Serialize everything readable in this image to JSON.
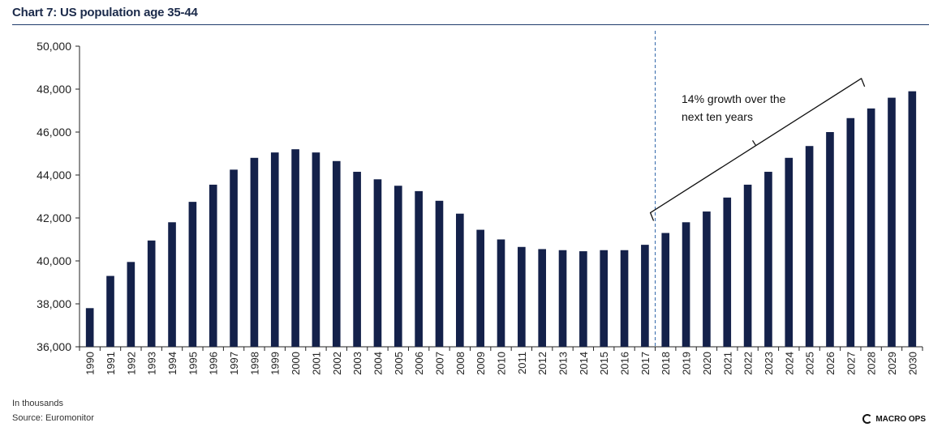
{
  "title": "Chart 7: US population age 35-44",
  "footnote": {
    "units": "In thousands",
    "source": "Source:  Euromonitor"
  },
  "brand": {
    "name": "MACRO OPS"
  },
  "colors": {
    "bar": "#14214a",
    "title": "#1b2a4a",
    "rule": "#1f3b6b",
    "divider": "#2e64a8"
  },
  "chart_data": {
    "type": "bar",
    "title": "Chart 7: US population age 35-44",
    "xlabel": "",
    "ylabel": "",
    "ylim": [
      36000,
      50000
    ],
    "yticks": [
      36000,
      38000,
      40000,
      42000,
      44000,
      46000,
      48000,
      50000
    ],
    "grid": false,
    "categories": [
      "1990",
      "1991",
      "1992",
      "1993",
      "1994",
      "1995",
      "1996",
      "1997",
      "1998",
      "1999",
      "2000",
      "2001",
      "2002",
      "2003",
      "2004",
      "2005",
      "2006",
      "2007",
      "2008",
      "2009",
      "2010",
      "2011",
      "2012",
      "2013",
      "2014",
      "2015",
      "2016",
      "2017",
      "2018",
      "2019",
      "2020",
      "2021",
      "2022",
      "2023",
      "2024",
      "2025",
      "2026",
      "2027",
      "2028",
      "2029",
      "2030"
    ],
    "values": [
      37800,
      39300,
      39950,
      40950,
      41800,
      42750,
      43550,
      44250,
      44800,
      45050,
      45200,
      45050,
      44650,
      44150,
      43800,
      43500,
      43250,
      42800,
      42200,
      41450,
      41000,
      40650,
      40550,
      40500,
      40450,
      40500,
      40500,
      40750,
      41300,
      41800,
      42300,
      42950,
      43550,
      44150,
      44800,
      45350,
      46000,
      46650,
      47100,
      47600,
      47900
    ],
    "projection_divider_after": "2017",
    "annotation": {
      "text_line1": "14% growth over the",
      "text_line2": "next ten  years",
      "from": "2018",
      "to": "2028"
    }
  }
}
